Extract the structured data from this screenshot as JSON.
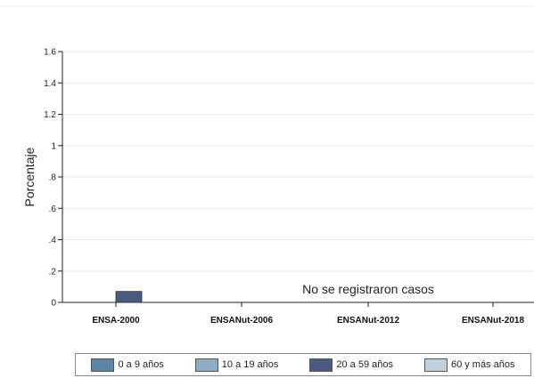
{
  "chart_data": {
    "type": "bar",
    "title": "",
    "xlabel": "",
    "ylabel": "Porcentaje",
    "ylim": [
      0,
      1.6
    ],
    "yticks": [
      {
        "value": 0,
        "label": "0"
      },
      {
        "value": 0.2,
        "label": ".2"
      },
      {
        "value": 0.4,
        "label": ".4"
      },
      {
        "value": 0.6,
        "label": ".6"
      },
      {
        "value": 0.8,
        "label": ".8"
      },
      {
        "value": 1.0,
        "label": "1"
      },
      {
        "value": 1.2,
        "label": "1.2"
      },
      {
        "value": 1.4,
        "label": "1.4"
      },
      {
        "value": 1.6,
        "label": "1.6"
      }
    ],
    "grid": true,
    "legend_position": "bottom",
    "categories": [
      "ENSA-2000",
      "ENSANut-2006",
      "ENSANut-2012",
      "ENSANut-2018"
    ],
    "series": [
      {
        "name": "0 a 9 años",
        "color": "#5b84a8",
        "values": [
          0,
          0,
          0,
          0
        ]
      },
      {
        "name": "10 a 19 años",
        "color": "#8eaec7",
        "values": [
          0,
          0,
          0,
          0
        ]
      },
      {
        "name": "20 a 59 años",
        "color": "#4a5a80",
        "values": [
          0.07,
          0,
          0,
          0
        ]
      },
      {
        "name": "60 y más años",
        "color": "#bfd0df",
        "values": [
          0,
          0,
          0,
          0
        ]
      }
    ],
    "annotations": [
      {
        "text": "No se registraron casos",
        "category_index": 2
      }
    ]
  }
}
